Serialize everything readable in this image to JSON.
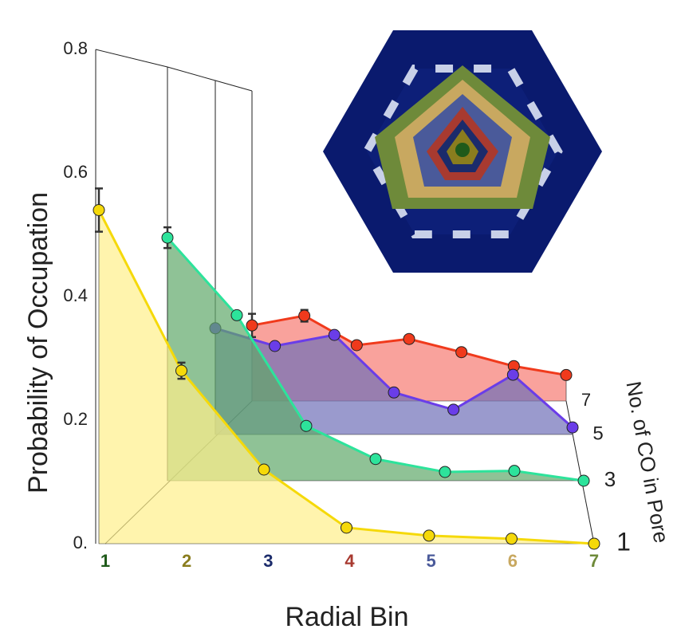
{
  "chart_data": {
    "type": "waterfall3d",
    "y_label": "Probability of Occupation",
    "x_label": "Radial Bin",
    "z_label": "No. of CO in Pore",
    "categories": [
      "1",
      "2",
      "3",
      "4",
      "5",
      "6",
      "7"
    ],
    "category_colors": [
      "#1f5a1a",
      "#8a7d1e",
      "#1b2b6b",
      "#a83a30",
      "#4a5a9a",
      "#c8a860",
      "#6e8a3a"
    ],
    "ylim": [
      0,
      0.8
    ],
    "yticks": [
      {
        "value": 0,
        "label": "0."
      },
      0.2,
      0.4,
      0.6,
      0.8
    ],
    "series": [
      {
        "name": "7",
        "color": "#f03a1c",
        "fill": "#f77a72",
        "values": [
          0.195,
          0.22,
          0.144,
          0.16,
          0.126,
          0.09,
          0.067
        ],
        "errors": [
          0.03,
          0.015,
          null,
          null,
          null,
          null,
          null
        ]
      },
      {
        "name": "5",
        "color": "#6a3de8",
        "fill": "#6f6fb8",
        "values": [
          0.24,
          0.2,
          0.225,
          0.095,
          0.056,
          0.135,
          0.016
        ],
        "errors": [
          null,
          null,
          null,
          null,
          null,
          null,
          null
        ]
      },
      {
        "name": "3",
        "color": "#2de39b",
        "fill": "#5fa86a",
        "values": [
          0.47,
          0.32,
          0.106,
          0.042,
          0.017,
          0.019,
          0
        ],
        "errors": [
          0.02,
          null,
          null,
          null,
          null,
          null,
          null
        ]
      },
      {
        "name": "1",
        "color": "#f5d90a",
        "fill": "#fff08a",
        "values": [
          0.54,
          0.28,
          0.12,
          0.026,
          0.013,
          0.008,
          0
        ],
        "errors": [
          0.035,
          0.013,
          null,
          null,
          null,
          null,
          null
        ]
      }
    ]
  }
}
